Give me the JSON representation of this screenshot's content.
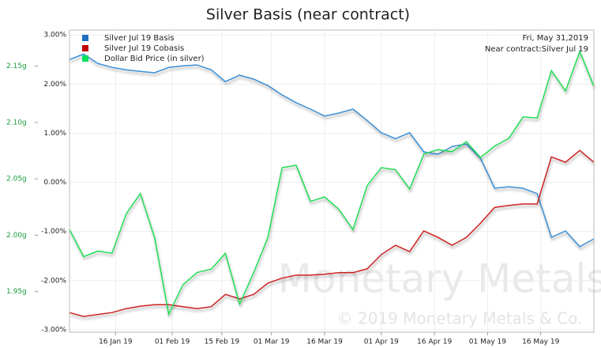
{
  "chart_data": {
    "type": "line",
    "title": "Silver Basis (near contract)",
    "x": [
      "2019-01-03",
      "2019-01-07",
      "2019-01-11",
      "2019-01-15",
      "2019-01-19",
      "2019-01-23",
      "2019-01-27",
      "2019-01-31",
      "2019-02-04",
      "2019-02-08",
      "2019-02-12",
      "2019-02-16",
      "2019-02-20",
      "2019-02-24",
      "2019-02-28",
      "2019-03-04",
      "2019-03-08",
      "2019-03-12",
      "2019-03-16",
      "2019-03-20",
      "2019-03-24",
      "2019-03-28",
      "2019-04-01",
      "2019-04-05",
      "2019-04-09",
      "2019-04-13",
      "2019-04-17",
      "2019-04-21",
      "2019-04-25",
      "2019-04-29",
      "2019-05-03",
      "2019-05-07",
      "2019-05-11",
      "2019-05-15",
      "2019-05-19",
      "2019-05-23",
      "2019-05-27",
      "2019-05-31"
    ],
    "xlim": [
      "2019-01-03",
      "2019-05-31"
    ],
    "xticks": [
      {
        "value": "2019-01-16",
        "label": "16 Jan 19"
      },
      {
        "value": "2019-02-01",
        "label": "01 Feb 19"
      },
      {
        "value": "2019-02-15",
        "label": "15 Feb 19"
      },
      {
        "value": "2019-03-01",
        "label": "01 Mar 19"
      },
      {
        "value": "2019-03-16",
        "label": "16 Mar 19"
      },
      {
        "value": "2019-04-01",
        "label": "01 Apr 19"
      },
      {
        "value": "2019-04-16",
        "label": "16 Apr 19"
      },
      {
        "value": "2019-05-01",
        "label": "01 May 19"
      },
      {
        "value": "2019-05-16",
        "label": "16 May 19"
      }
    ],
    "ylim": [
      -3.05,
      3.1
    ],
    "yticks": [
      {
        "value": 3,
        "label": "3.00%"
      },
      {
        "value": 2,
        "label": "2.00%"
      },
      {
        "value": 1,
        "label": "1.00%"
      },
      {
        "value": 0,
        "label": "0.00%"
      },
      {
        "value": -1,
        "label": "-1.00%"
      },
      {
        "value": -2,
        "label": "-2.00%"
      },
      {
        "value": -3,
        "label": "-3.00%"
      }
    ],
    "y2lim": [
      1.914,
      2.182
    ],
    "y2ticks": [
      {
        "value": 1.95,
        "label": "1.95g"
      },
      {
        "value": 2.0,
        "label": "2.00g"
      },
      {
        "value": 2.05,
        "label": "2.05g"
      },
      {
        "value": 2.1,
        "label": "2.10g"
      },
      {
        "value": 2.15,
        "label": "2.15g"
      }
    ],
    "grid": true,
    "legend": "top-left",
    "annotations": [
      "Fri, May 31,2019",
      "Near contract:Silver Jul 19"
    ],
    "watermark": [
      "Monetary Metals",
      "© 2019 Monetary Metals & Co."
    ],
    "series": [
      {
        "name": "Silver Jul 19 Basis",
        "color": "#3a8fd6",
        "legend_color": "#1f6fc0",
        "values": [
          2.5,
          2.61,
          2.42,
          2.34,
          2.29,
          2.26,
          2.23,
          2.34,
          2.37,
          2.39,
          2.29,
          2.05,
          2.18,
          2.1,
          1.97,
          1.78,
          1.62,
          1.49,
          1.35,
          1.41,
          1.49,
          1.26,
          1.01,
          0.89,
          1.01,
          0.62,
          0.57,
          0.73,
          0.78,
          0.49,
          -0.12,
          -0.09,
          -0.12,
          -0.23,
          -1.12,
          -0.99,
          -1.31,
          -1.15
        ]
      },
      {
        "name": "Silver Jul 19 Cobasis",
        "color": "#cc2222",
        "legend_color": "#c00000",
        "values": [
          -2.65,
          -2.73,
          -2.69,
          -2.65,
          -2.57,
          -2.52,
          -2.49,
          -2.49,
          -2.53,
          -2.57,
          -2.53,
          -2.28,
          -2.37,
          -2.28,
          -2.05,
          -1.95,
          -1.89,
          -1.89,
          -1.87,
          -1.84,
          -1.84,
          -1.76,
          -1.47,
          -1.28,
          -1.41,
          -0.99,
          -1.12,
          -1.28,
          -1.12,
          -0.83,
          -0.51,
          -0.47,
          -0.44,
          -0.44,
          0.52,
          0.41,
          0.65,
          0.41
        ]
      },
      {
        "name": "Dollar Bid Price (in silver)",
        "color": "#22dd55",
        "legend_color": "#00e060",
        "axis": "y2",
        "values": [
          2.005,
          1.981,
          1.986,
          1.984,
          2.019,
          2.037,
          1.998,
          1.93,
          1.956,
          1.967,
          1.97,
          1.984,
          1.939,
          1.967,
          1.998,
          2.06,
          2.062,
          2.03,
          2.034,
          2.023,
          2.005,
          2.044,
          2.06,
          2.058,
          2.041,
          2.072,
          2.076,
          2.074,
          2.083,
          2.069,
          2.079,
          2.086,
          2.105,
          2.104,
          2.146,
          2.128,
          2.163,
          2.132
        ]
      }
    ]
  }
}
